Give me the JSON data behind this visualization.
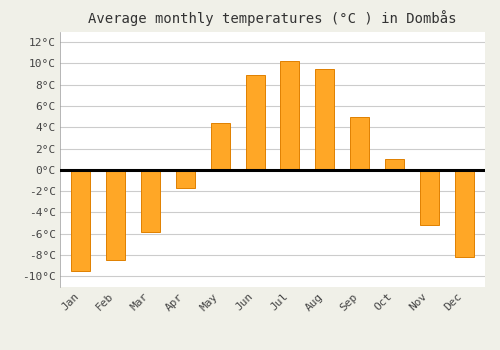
{
  "months": [
    "Jan",
    "Feb",
    "Mar",
    "Apr",
    "May",
    "Jun",
    "Jul",
    "Aug",
    "Sep",
    "Oct",
    "Nov",
    "Dec"
  ],
  "temperatures": [
    -9.5,
    -8.5,
    -5.8,
    -1.7,
    4.4,
    8.9,
    10.2,
    9.5,
    5.0,
    1.0,
    -5.2,
    -8.2
  ],
  "bar_color": "#FFA726",
  "bar_edge_color": "#E08000",
  "title": "Average monthly temperatures (°C ) in Dombås",
  "ylim": [
    -11,
    13
  ],
  "yticks": [
    -10,
    -8,
    -6,
    -4,
    -2,
    0,
    2,
    4,
    6,
    8,
    10,
    12
  ],
  "ytick_labels": [
    "-10°C",
    "-8°C",
    "-6°C",
    "-4°C",
    "-2°C",
    "0°C",
    "2°C",
    "4°C",
    "6°C",
    "8°C",
    "10°C",
    "12°C"
  ],
  "plot_bg_color": "#FFFFFF",
  "fig_bg_color": "#F0F0E8",
  "grid_color": "#CCCCCC",
  "title_fontsize": 10,
  "tick_fontsize": 8,
  "bar_width": 0.55
}
